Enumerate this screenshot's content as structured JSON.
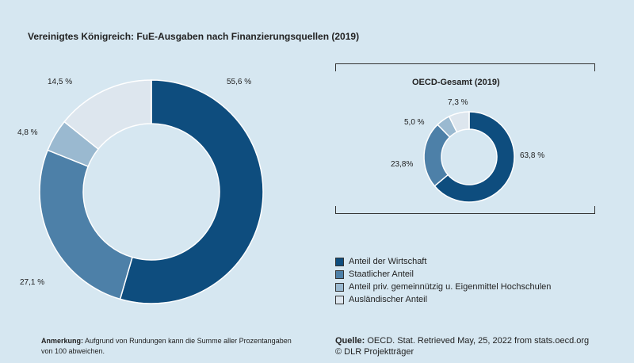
{
  "title": "Vereinigtes Königreich: FuE-Ausgaben nach Finanzierungsquellen (2019)",
  "oecd_title": "OECD-Gesamt (2019)",
  "legend": [
    {
      "label": "Anteil der Wirtschaft",
      "color": "#0e4d7e"
    },
    {
      "label": "Staatlicher Anteil",
      "color": "#4d80a8"
    },
    {
      "label": "Anteil priv. gemeinnützig u. Eigenmittel Hochschulen",
      "color": "#9ab9d0"
    },
    {
      "label": "Ausländischer Anteil",
      "color": "#dde6ee"
    }
  ],
  "note": {
    "label": "Anmerkung:",
    "text": "Aufgrund von Rundungen kann die Summe aller Prozentangaben von 100 abweichen."
  },
  "source": {
    "label": "Quelle:",
    "text": "OECD. Stat. Retrieved May, 25, 2022 from stats.oecd.org",
    "copyright": "© DLR Projektträger"
  },
  "chart_data": [
    {
      "type": "pie",
      "title": "Vereinigtes Königreich: FuE-Ausgaben nach Finanzierungsquellen (2019)",
      "categories": [
        "Anteil der Wirtschaft",
        "Staatlicher Anteil",
        "Anteil priv. gemeinnützig u. Eigenmittel Hochschulen",
        "Ausländischer Anteil"
      ],
      "values": [
        55.6,
        27.1,
        4.8,
        14.5
      ],
      "labels": [
        "55,6 %",
        "27,1 %",
        "4,8 %",
        "14,5 %"
      ]
    },
    {
      "type": "pie",
      "title": "OECD-Gesamt (2019)",
      "categories": [
        "Anteil der Wirtschaft",
        "Staatlicher Anteil",
        "Anteil priv. gemeinnützig u. Eigenmittel Hochschulen",
        "Ausländischer Anteil"
      ],
      "values": [
        63.8,
        23.8,
        5.0,
        7.3
      ],
      "labels": [
        "63,8 %",
        "23,8%",
        "5,0 %",
        "7,3 %"
      ]
    }
  ]
}
